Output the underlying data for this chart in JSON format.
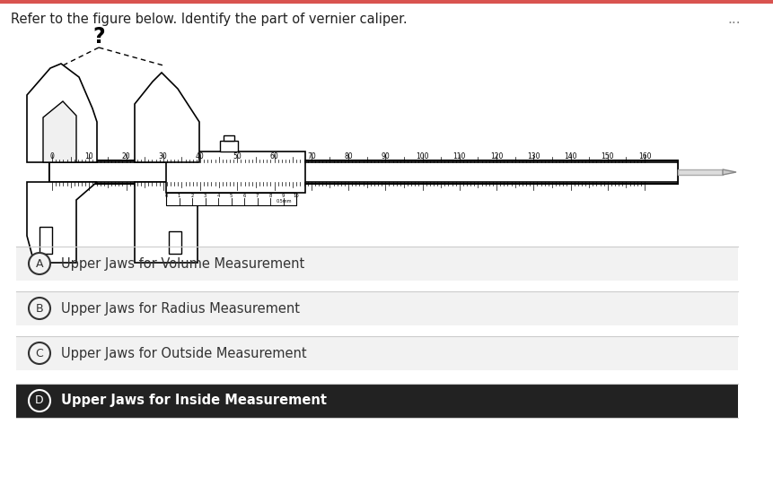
{
  "title": "Refer to the figure below. Identify the part of vernier caliper.",
  "question_mark": "?",
  "dots": "...",
  "options": [
    {
      "label": "A",
      "text": "Upper Jaws for Volume Measurement",
      "selected": false
    },
    {
      "label": "B",
      "text": "Upper Jaws for Radius Measurement",
      "selected": false
    },
    {
      "label": "C",
      "text": "Upper Jaws for Outside Measurement",
      "selected": false
    },
    {
      "label": "D",
      "text": "Upper Jaws for Inside Measurement",
      "selected": true
    }
  ],
  "bg_color": "#ffffff",
  "option_bg": "#f2f2f2",
  "selected_bg": "#222222",
  "selected_text": "#ffffff",
  "unselected_text": "#333333",
  "border_color": "#dddddd",
  "title_color": "#222222",
  "top_border_color": "#d9534f",
  "scale_labels": [
    "0",
    "10",
    "20",
    "30",
    "40",
    "50",
    "60",
    "70",
    "80",
    "90",
    "100",
    "110",
    "120",
    "130",
    "140",
    "150",
    "160"
  ]
}
